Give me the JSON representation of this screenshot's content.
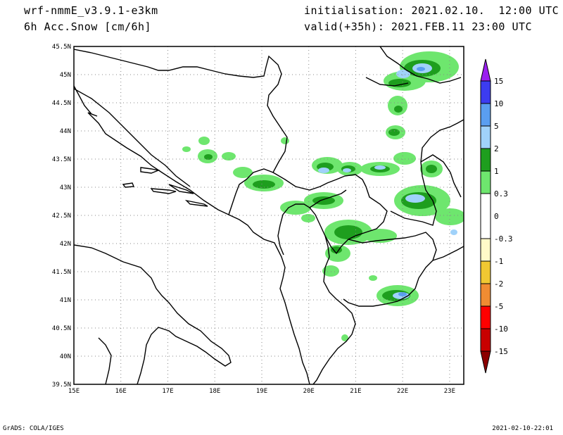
{
  "header": {
    "model": "wrf-nmmE_v3.9.1-e3km",
    "field": "6h Acc.Snow [cm/6h]",
    "initialisation": "initialisation: 2021.02.10.  12:00 UTC",
    "valid": "valid(+35h): 2021.FEB.11 23:00 UTC"
  },
  "map": {
    "lon_ticks": [
      "15E",
      "16E",
      "17E",
      "18E",
      "19E",
      "20E",
      "21E",
      "22E",
      "23E"
    ],
    "lat_ticks": [
      "45.5N",
      "45N",
      "44.5N",
      "44N",
      "43.5N",
      "43N",
      "42.5N",
      "42N",
      "41.5N",
      "41N",
      "40.5N",
      "40N",
      "39.5N"
    ],
    "lon_range": [
      15,
      23.3
    ],
    "lat_range": [
      39.5,
      45.5
    ],
    "grid": "dotted"
  },
  "colorbar": {
    "labels": [
      "15",
      "10",
      "5",
      "2",
      "1",
      "0.3",
      "0",
      "-0.3",
      "-1",
      "-2",
      "-5",
      "-10",
      "-15"
    ],
    "colors": [
      "#9a1ff0",
      "#3c3cf0",
      "#5a9ef0",
      "#a0d2fa",
      "#1e9e1e",
      "#6ee66e",
      "#ffffff",
      "#fffac8",
      "#f0c832",
      "#f08c32",
      "#ff0000",
      "#c80000",
      "#8c0000"
    ]
  },
  "footer": {
    "left": "GrADS: COLA/IGES",
    "right": "2021-02-10-22:01"
  }
}
